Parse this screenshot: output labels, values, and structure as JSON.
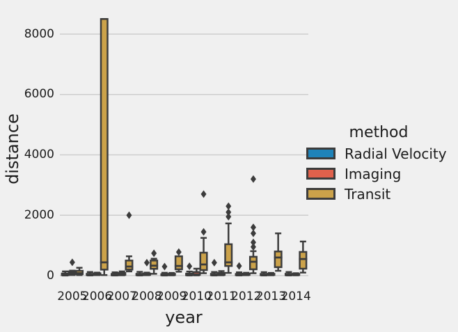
{
  "chart_data": {
    "type": "boxplot",
    "title": "",
    "xlabel": "year",
    "ylabel": "distance",
    "categories": [
      "2005",
      "2006",
      "2007",
      "2008",
      "2009",
      "2010",
      "2011",
      "2012",
      "2013",
      "2014"
    ],
    "yticks": [
      0,
      2000,
      4000,
      6000,
      8000
    ],
    "ylim": [
      -150,
      8900
    ],
    "grid": true,
    "legend": {
      "title": "method",
      "position": "center-right",
      "items": [
        {
          "label": "Radial Velocity",
          "color": "#1f83b9"
        },
        {
          "label": "Imaging",
          "color": "#e0614c"
        },
        {
          "label": "Transit",
          "color": "#cba24a"
        }
      ]
    },
    "colors": {
      "background": "#f0f0f0",
      "grid": "#cdcdcd",
      "box_edge": "#3c3c3c",
      "flier": "#3c3c3c",
      "text": "#1c1c1c"
    },
    "series": [
      {
        "name": "Radial Velocity",
        "color": "#1f83b9",
        "boxes": [
          {
            "low": 4,
            "q1": 15,
            "median": 31,
            "q3": 70,
            "high": 140,
            "outliers": []
          },
          {
            "low": 6,
            "q1": 17,
            "median": 33,
            "q3": 60,
            "high": 120,
            "outliers": []
          },
          {
            "low": 5,
            "q1": 12,
            "median": 28,
            "q3": 55,
            "high": 110,
            "outliers": []
          },
          {
            "low": 5,
            "q1": 15,
            "median": 31,
            "q3": 60,
            "high": 125,
            "outliers": []
          },
          {
            "low": 4,
            "q1": 12,
            "median": 26,
            "q3": 48,
            "high": 95,
            "outliers": [
              300
            ]
          },
          {
            "low": 5,
            "q1": 15,
            "median": 31,
            "q3": 66,
            "high": 135,
            "outliers": [
              310
            ]
          },
          {
            "low": 5,
            "q1": 14,
            "median": 30,
            "q3": 60,
            "high": 120,
            "outliers": [
              430
            ]
          },
          {
            "low": 6,
            "q1": 15,
            "median": 30,
            "q3": 55,
            "high": 110,
            "outliers": [
              320
            ]
          },
          {
            "low": 5,
            "q1": 14,
            "median": 29,
            "q3": 57,
            "high": 115,
            "outliers": []
          },
          {
            "low": 6,
            "q1": 16,
            "median": 32,
            "q3": 60,
            "high": 120,
            "outliers": []
          }
        ]
      },
      {
        "name": "Imaging",
        "color": "#e0614c",
        "boxes": [
          {
            "low": 20,
            "q1": 45,
            "median": 90,
            "q3": 140,
            "high": 165,
            "outliers": [
              440
            ]
          },
          {
            "low": 17,
            "q1": 25,
            "median": 45,
            "q3": 75,
            "high": 100,
            "outliers": []
          },
          {
            "low": 12,
            "q1": 25,
            "median": 40,
            "q3": 90,
            "high": 140,
            "outliers": []
          },
          {
            "low": 15,
            "q1": 25,
            "median": 40,
            "q3": 70,
            "high": 100,
            "outliers": [
              430
            ]
          },
          {
            "low": 10,
            "q1": 20,
            "median": 36,
            "q3": 60,
            "high": 90,
            "outliers": []
          },
          {
            "low": 9,
            "q1": 25,
            "median": 45,
            "q3": 120,
            "high": 230,
            "outliers": []
          },
          {
            "low": 12,
            "q1": 25,
            "median": 45,
            "q3": 90,
            "high": 150,
            "outliers": []
          },
          {
            "low": 15,
            "q1": 25,
            "median": 40,
            "q3": 65,
            "high": 95,
            "outliers": []
          },
          {
            "low": 12,
            "q1": 22,
            "median": 38,
            "q3": 60,
            "high": 90,
            "outliers": []
          },
          {
            "low": 10,
            "q1": 20,
            "median": 35,
            "q3": 55,
            "high": 80,
            "outliers": []
          }
        ]
      },
      {
        "name": "Transit",
        "color": "#cba24a",
        "boxes": [
          {
            "low": 19,
            "q1": 49,
            "median": 79,
            "q3": 160,
            "high": 260,
            "outliers": []
          },
          {
            "low": 19,
            "q1": 200,
            "median": 440,
            "q3": 8500,
            "high": 8500,
            "outliers": []
          },
          {
            "low": 140,
            "q1": 200,
            "median": 300,
            "q3": 500,
            "high": 640,
            "outliers": [
              2000
            ]
          },
          {
            "low": 60,
            "q1": 225,
            "median": 330,
            "q3": 500,
            "high": 560,
            "outliers": [
              740
            ]
          },
          {
            "low": 130,
            "q1": 210,
            "median": 320,
            "q3": 640,
            "high": 640,
            "outliers": [
              780
            ]
          },
          {
            "low": 80,
            "q1": 185,
            "median": 370,
            "q3": 760,
            "high": 1250,
            "outliers": [
              1450,
              2700
            ]
          },
          {
            "low": 90,
            "q1": 320,
            "median": 440,
            "q3": 1040,
            "high": 1730,
            "outliers": [
              1950,
              2100,
              2300
            ]
          },
          {
            "low": 80,
            "q1": 210,
            "median": 460,
            "q3": 625,
            "high": 810,
            "outliers": [
              950,
              1100,
              1400,
              1600,
              3200
            ]
          },
          {
            "low": 160,
            "q1": 280,
            "median": 600,
            "q3": 800,
            "high": 1400,
            "outliers": []
          },
          {
            "low": 100,
            "q1": 230,
            "median": 550,
            "q3": 785,
            "high": 1130,
            "outliers": []
          }
        ]
      }
    ]
  }
}
